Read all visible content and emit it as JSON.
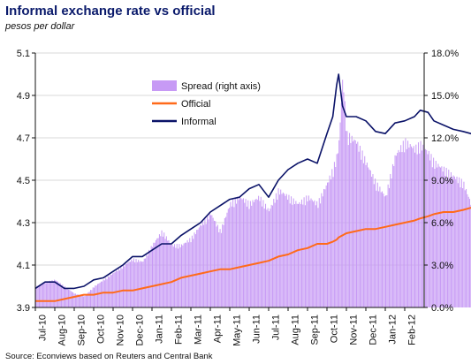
{
  "colors": {
    "spread": "#c79af5",
    "official": "#ff6a1a",
    "informal": "#0a1268",
    "title": "#0a1a6b",
    "grid": "#d8d8d8"
  },
  "chart_data": {
    "type": "bar+line",
    "title": "Informal exchange rate vs official",
    "subtitle": "pesos per dollar",
    "source": "Source: Econviews based on Reuters and Central Bank",
    "left_axis": {
      "min": 3.9,
      "max": 5.1,
      "ticks": [
        "3.9",
        "4.1",
        "4.3",
        "4.5",
        "4.7",
        "4.9",
        "5.1"
      ]
    },
    "right_axis": {
      "min": 0,
      "max": 18,
      "unit": "%",
      "ticks": [
        "0.0%",
        "3.0%",
        "6.0%",
        "9.0%",
        "12.0%",
        "15.0%",
        "18.0%"
      ]
    },
    "x_tick_labels": [
      "Jul-10",
      "Aug-10",
      "Sep-10",
      "Oct-10",
      "Nov-10",
      "Dec-10",
      "Jan-11",
      "Feb-11",
      "Mar-11",
      "Apr-11",
      "May-11",
      "Jun-11",
      "Jul-11",
      "Aug-11",
      "Sep-11",
      "Oct-11",
      "Nov-11",
      "Dec-11",
      "Jan-12",
      "Feb-12"
    ],
    "grid": true,
    "legend": {
      "placement": "top-center",
      "entries": [
        {
          "label": "Spread (right axis)",
          "kind": "bar",
          "color_key": "spread"
        },
        {
          "label": "Official",
          "kind": "line",
          "color_key": "official"
        },
        {
          "label": "Informal",
          "kind": "line",
          "color_key": "informal"
        }
      ]
    },
    "x_months": [
      0,
      0.5,
      1,
      1.5,
      2,
      2.5,
      3,
      3.5,
      4,
      4.5,
      5,
      5.5,
      6,
      6.5,
      7,
      7.5,
      8,
      8.5,
      9,
      9.5,
      10,
      10.5,
      11,
      11.5,
      12,
      12.5,
      13,
      13.5,
      14,
      14.5,
      15,
      15.3,
      15.5,
      15.6,
      15.8,
      16,
      16.5,
      17,
      17.5,
      18,
      18.5,
      19,
      19.5,
      19.8,
      20.2,
      20.5,
      21,
      21.5,
      22,
      22.4,
      22.8
    ],
    "series": [
      {
        "name": "Spread (right axis)",
        "axis": "right",
        "values": [
          1.5,
          1.8,
          2.0,
          1.5,
          1.0,
          0.8,
          1.5,
          2.0,
          2.5,
          3.0,
          3.5,
          3.3,
          4.5,
          5.5,
          4.5,
          4.5,
          5.0,
          6.0,
          6.8,
          5.5,
          7.5,
          8.0,
          7.5,
          8.0,
          7.0,
          8.5,
          8.0,
          7.5,
          8.0,
          7.5,
          9.0,
          10.0,
          11.0,
          12.0,
          16.8,
          12.5,
          12.0,
          10.5,
          9.0,
          8.0,
          11.0,
          12.0,
          11.5,
          11.8,
          11.2,
          10.5,
          10.0,
          9.5,
          9.0,
          7.5,
          6.0
        ]
      },
      {
        "name": "Official",
        "axis": "left",
        "values": [
          3.93,
          3.93,
          3.93,
          3.94,
          3.95,
          3.96,
          3.96,
          3.97,
          3.97,
          3.98,
          3.98,
          3.99,
          4.0,
          4.01,
          4.02,
          4.04,
          4.05,
          4.06,
          4.07,
          4.08,
          4.08,
          4.09,
          4.1,
          4.11,
          4.12,
          4.14,
          4.15,
          4.17,
          4.18,
          4.2,
          4.2,
          4.21,
          4.22,
          4.23,
          4.24,
          4.25,
          4.26,
          4.27,
          4.27,
          4.28,
          4.29,
          4.3,
          4.31,
          4.32,
          4.33,
          4.34,
          4.35,
          4.35,
          4.36,
          4.37,
          4.37
        ]
      },
      {
        "name": "Informal",
        "axis": "left",
        "values": [
          3.99,
          4.02,
          4.02,
          3.99,
          3.99,
          4.0,
          4.03,
          4.04,
          4.07,
          4.1,
          4.14,
          4.14,
          4.17,
          4.2,
          4.2,
          4.24,
          4.27,
          4.3,
          4.35,
          4.38,
          4.41,
          4.42,
          4.46,
          4.48,
          4.42,
          4.5,
          4.55,
          4.58,
          4.6,
          4.58,
          4.72,
          4.8,
          4.95,
          5.0,
          4.85,
          4.8,
          4.8,
          4.78,
          4.73,
          4.72,
          4.77,
          4.78,
          4.8,
          4.83,
          4.82,
          4.78,
          4.76,
          4.74,
          4.73,
          4.72,
          4.7
        ]
      }
    ]
  }
}
